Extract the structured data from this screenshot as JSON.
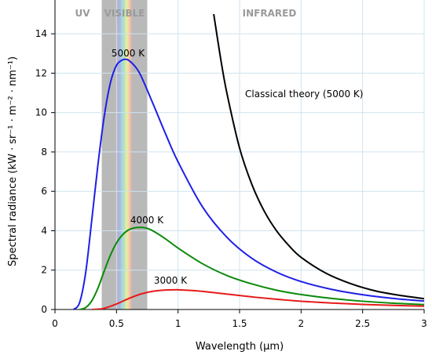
{
  "chart_data": {
    "type": "line",
    "xlabel": "Wavelength (μm)",
    "ylabel": "Spectral radiance (kW · sr⁻¹ · m⁻² · nm⁻¹)",
    "xlim": [
      0,
      3
    ],
    "ylim": [
      0,
      15
    ],
    "x_ticks": [
      "0",
      "0.5",
      "1",
      "1.5",
      "2",
      "2.5",
      "3"
    ],
    "y_ticks": [
      "0",
      "2",
      "4",
      "6",
      "8",
      "10",
      "12",
      "14"
    ],
    "grid": true,
    "bands": [
      {
        "label": "UV",
        "from": 0,
        "to": 0.38,
        "fill": "none"
      },
      {
        "label": "VISIBLE",
        "from": 0.38,
        "to": 0.75,
        "fill": "spectrum"
      },
      {
        "label": "INFRARED",
        "from": 0.75,
        "to": 3,
        "fill": "none"
      }
    ],
    "colors": {
      "grid": "#cfe3ef",
      "band_gray": "#b9b9b9",
      "band_label": "#9a9a9a"
    },
    "series": [
      {
        "name": "5000 K",
        "color": "#1f1fe6",
        "x": [
          0.15,
          0.2,
          0.25,
          0.3,
          0.35,
          0.4,
          0.45,
          0.5,
          0.55,
          0.58,
          0.6,
          0.65,
          0.7,
          0.8,
          0.9,
          1.0,
          1.2,
          1.4,
          1.6,
          1.8,
          2.0,
          2.25,
          2.5,
          2.75,
          3.0
        ],
        "y": [
          0.0,
          0.35,
          1.9,
          4.6,
          7.4,
          9.8,
          11.5,
          12.4,
          12.68,
          12.7,
          12.65,
          12.35,
          11.85,
          10.4,
          8.9,
          7.5,
          5.2,
          3.65,
          2.6,
          1.9,
          1.42,
          1.02,
          0.75,
          0.56,
          0.43
        ]
      },
      {
        "name": "4000 K",
        "color": "#0a8a0a",
        "x": [
          0.2,
          0.25,
          0.3,
          0.35,
          0.4,
          0.45,
          0.5,
          0.55,
          0.6,
          0.65,
          0.7,
          0.72,
          0.75,
          0.8,
          0.9,
          1.0,
          1.2,
          1.4,
          1.6,
          1.8,
          2.0,
          2.25,
          2.5,
          2.75,
          3.0
        ],
        "y": [
          0.0,
          0.1,
          0.45,
          1.1,
          1.95,
          2.75,
          3.38,
          3.8,
          4.05,
          4.15,
          4.17,
          4.16,
          4.12,
          3.98,
          3.58,
          3.12,
          2.32,
          1.72,
          1.3,
          0.98,
          0.76,
          0.56,
          0.42,
          0.32,
          0.25
        ]
      },
      {
        "name": "3000 K",
        "color": "#e61a1a",
        "x": [
          0.3,
          0.35,
          0.4,
          0.5,
          0.6,
          0.7,
          0.8,
          0.9,
          0.97,
          1.0,
          1.1,
          1.2,
          1.4,
          1.6,
          1.8,
          2.0,
          2.25,
          2.5,
          2.75,
          3.0
        ],
        "y": [
          0.0,
          0.02,
          0.06,
          0.28,
          0.56,
          0.79,
          0.93,
          0.99,
          1.0,
          1.0,
          0.97,
          0.92,
          0.78,
          0.64,
          0.52,
          0.42,
          0.33,
          0.26,
          0.21,
          0.17
        ]
      },
      {
        "name": "Classical theory (5000 K)",
        "color": "#000000",
        "x": [
          1.29,
          1.35,
          1.4,
          1.5,
          1.6,
          1.7,
          1.8,
          1.9,
          2.0,
          2.2,
          2.4,
          2.6,
          2.8,
          3.0
        ],
        "y": [
          15.0,
          12.6,
          10.9,
          8.2,
          6.35,
          5.0,
          4.0,
          3.25,
          2.65,
          1.85,
          1.32,
          0.95,
          0.72,
          0.55
        ]
      }
    ]
  }
}
